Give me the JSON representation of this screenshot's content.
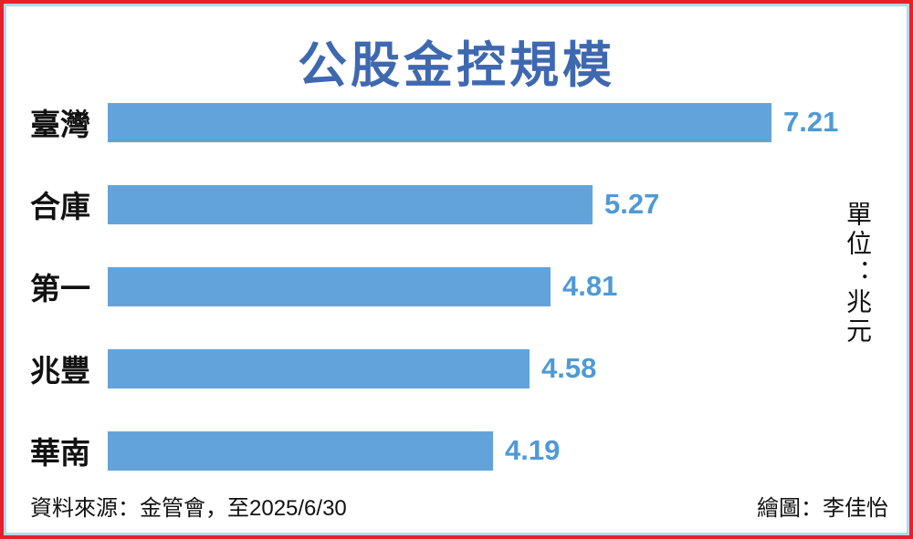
{
  "frame": {
    "outer_border": "#e8202b",
    "inner_border": "#b9d5eb"
  },
  "chart_data": {
    "type": "bar",
    "orientation": "horizontal",
    "title": "公股金控規模",
    "categories": [
      "臺灣",
      "合庫",
      "第一",
      "兆豐",
      "華南"
    ],
    "values": [
      7.21,
      5.27,
      4.81,
      4.58,
      4.19
    ],
    "value_labels": [
      "7.21",
      "5.27",
      "4.81",
      "4.58",
      "4.19"
    ],
    "unit_label": "單位：兆元",
    "xlim": [
      0,
      7.21
    ],
    "grid": false,
    "legend": false,
    "bar_color": "#63a3dc",
    "value_color": "#4f9ad6",
    "title_color": "#3e68b0"
  },
  "footer": {
    "source": "資料來源：金管會，至2025/6/30",
    "credit": "繪圖：李佳怡"
  }
}
